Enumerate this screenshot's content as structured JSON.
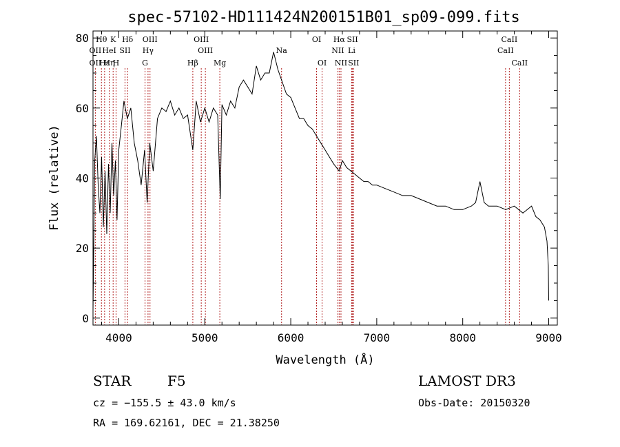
{
  "chart_data": {
    "type": "line",
    "title": "spec-57102-HD111424N200151B01_sp09-099.fits",
    "xlabel": "Wavelength (Å)",
    "ylabel": "Flux (relative)",
    "xlim": [
      3700,
      9100
    ],
    "ylim": [
      -2,
      82
    ],
    "xticks": [
      4000,
      5000,
      6000,
      7000,
      8000,
      9000
    ],
    "yticks": [
      0,
      20,
      40,
      60,
      80
    ],
    "grid": false,
    "line_color": "#000000",
    "marker_color": "#b22222",
    "spectrum": {
      "x": [
        3700,
        3720,
        3740,
        3760,
        3780,
        3800,
        3820,
        3840,
        3860,
        3880,
        3900,
        3920,
        3940,
        3960,
        3980,
        4000,
        4030,
        4060,
        4100,
        4140,
        4180,
        4220,
        4260,
        4300,
        4330,
        4360,
        4400,
        4450,
        4500,
        4550,
        4600,
        4650,
        4700,
        4750,
        4800,
        4861,
        4900,
        4950,
        5000,
        5050,
        5100,
        5150,
        5180,
        5200,
        5250,
        5300,
        5350,
        5400,
        5450,
        5500,
        5550,
        5600,
        5650,
        5700,
        5750,
        5800,
        5850,
        5893,
        5950,
        6000,
        6050,
        6100,
        6150,
        6200,
        6250,
        6300,
        6350,
        6400,
        6450,
        6500,
        6563,
        6600,
        6650,
        6700,
        6750,
        6800,
        6850,
        6900,
        6950,
        7000,
        7100,
        7200,
        7300,
        7400,
        7500,
        7600,
        7700,
        7800,
        7900,
        8000,
        8100,
        8150,
        8200,
        8250,
        8300,
        8400,
        8500,
        8600,
        8700,
        8800,
        8850,
        8900,
        8950,
        8980,
        8995,
        9000
      ],
      "y": [
        2,
        45,
        52,
        38,
        30,
        46,
        26,
        42,
        24,
        44,
        30,
        50,
        35,
        45,
        28,
        48,
        55,
        62,
        57,
        60,
        50,
        45,
        38,
        48,
        33,
        50,
        42,
        57,
        60,
        59,
        62,
        58,
        60,
        57,
        58,
        48,
        62,
        56,
        60,
        56,
        60,
        58,
        34,
        61,
        58,
        62,
        60,
        66,
        68,
        66,
        64,
        72,
        68,
        70,
        70,
        76,
        71,
        68,
        64,
        63,
        60,
        57,
        57,
        55,
        54,
        52,
        50,
        48,
        46,
        44,
        42,
        45,
        43,
        42,
        41,
        40,
        39,
        39,
        38,
        38,
        37,
        36,
        35,
        35,
        34,
        33,
        32,
        32,
        31,
        31,
        32,
        33,
        39,
        33,
        32,
        32,
        31,
        32,
        30,
        32,
        29,
        28,
        26,
        22,
        15,
        5
      ]
    },
    "line_markers": [
      {
        "label": "Hθ",
        "wavelength": 3798,
        "row": 1
      },
      {
        "label": "K",
        "wavelength": 3934,
        "row": 1
      },
      {
        "label": "Hδ",
        "wavelength": 4102,
        "row": 1
      },
      {
        "label": "OIII",
        "wavelength": 4363,
        "row": 1
      },
      {
        "label": "OIII",
        "wavelength": 4959,
        "row": 1
      },
      {
        "label": "OI",
        "wavelength": 6300,
        "row": 1
      },
      {
        "label": "Hα",
        "wavelength": 6563,
        "row": 1
      },
      {
        "label": "SII",
        "wavelength": 6717,
        "row": 1
      },
      {
        "label": "CaII",
        "wavelength": 8542,
        "row": 1
      },
      {
        "label": "OII",
        "wavelength": 3727,
        "row": 2
      },
      {
        "label": "HeI",
        "wavelength": 3889,
        "row": 2
      },
      {
        "label": "SII",
        "wavelength": 4072,
        "row": 2
      },
      {
        "label": "Hγ",
        "wavelength": 4340,
        "row": 2
      },
      {
        "label": "OIII",
        "wavelength": 5007,
        "row": 2
      },
      {
        "label": "Na",
        "wavelength": 5893,
        "row": 2
      },
      {
        "label": "NII",
        "wavelength": 6548,
        "row": 2
      },
      {
        "label": "Li",
        "wavelength": 6708,
        "row": 2
      },
      {
        "label": "CaII",
        "wavelength": 8498,
        "row": 2
      },
      {
        "label": "OII",
        "wavelength": 3727,
        "row": 3
      },
      {
        "label": "Hε",
        "wavelength": 3835,
        "row": 3
      },
      {
        "label": "Hη",
        "wavelength": 3889,
        "row": 3
      },
      {
        "label": "H",
        "wavelength": 3968,
        "row": 3
      },
      {
        "label": "G",
        "wavelength": 4305,
        "row": 3
      },
      {
        "label": "Hβ",
        "wavelength": 4861,
        "row": 3
      },
      {
        "label": "Mg",
        "wavelength": 5175,
        "row": 3
      },
      {
        "label": "OI",
        "wavelength": 6364,
        "row": 3
      },
      {
        "label": "NII",
        "wavelength": 6584,
        "row": 3
      },
      {
        "label": "SII",
        "wavelength": 6731,
        "row": 3
      },
      {
        "label": "CaII",
        "wavelength": 8662,
        "row": 3
      }
    ]
  },
  "info": {
    "object_class": "STAR",
    "subclass": "F5",
    "survey": "LAMOST DR3",
    "redshift": "cz = −155.5 ± 43.0 km/s",
    "obs_date": "Obs-Date: 20150320",
    "coords": "RA = 169.62161, DEC =  21.38250"
  }
}
